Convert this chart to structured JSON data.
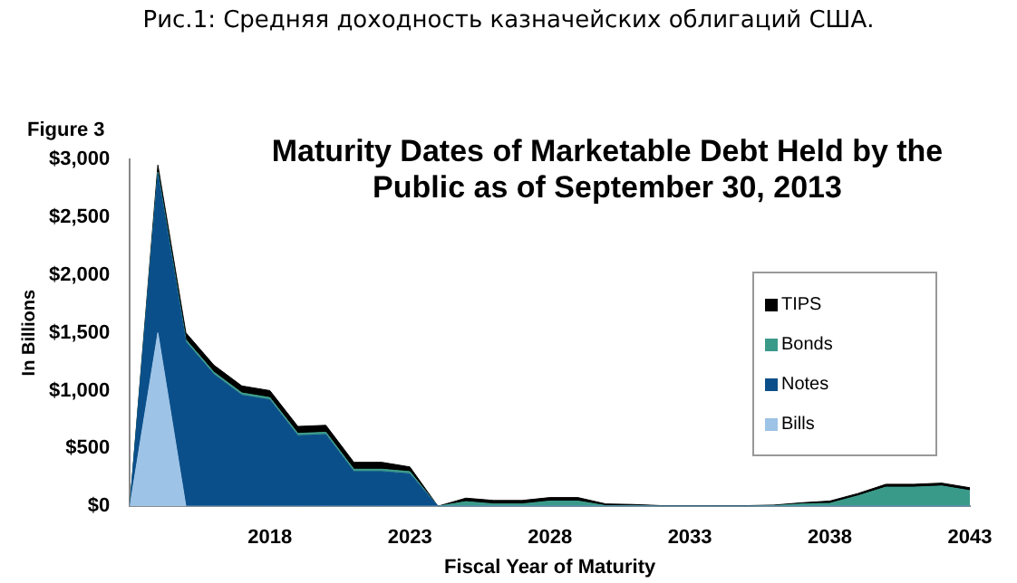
{
  "chart_data": {
    "type": "area",
    "title": "Maturity Dates of Marketable Debt Held by the Public as of September 30, 2013",
    "annotations": [
      "Рис.1: Средняя доходность казначейских облигаций США.",
      "Figure 3"
    ],
    "xlabel": "Fiscal Year of Maturity",
    "ylabel": "In Billions",
    "x": [
      2013,
      2014,
      2015,
      2016,
      2017,
      2018,
      2019,
      2020,
      2021,
      2022,
      2023,
      2024,
      2025,
      2026,
      2027,
      2028,
      2029,
      2030,
      2031,
      2032,
      2033,
      2034,
      2035,
      2036,
      2037,
      2038,
      2039,
      2040,
      2041,
      2042,
      2043
    ],
    "stacked": true,
    "series": [
      {
        "name": "Bills",
        "color": "#9dc3e6",
        "values": [
          0,
          1500,
          0,
          0,
          0,
          0,
          0,
          0,
          0,
          0,
          0,
          0,
          0,
          0,
          0,
          0,
          0,
          0,
          0,
          0,
          0,
          0,
          0,
          0,
          0,
          0,
          0,
          0,
          0,
          0,
          0
        ]
      },
      {
        "name": "Notes",
        "color": "#0b4f8a",
        "values": [
          0,
          1370,
          1420,
          1140,
          960,
          920,
          610,
          620,
          300,
          300,
          280,
          0,
          0,
          0,
          0,
          0,
          0,
          0,
          0,
          0,
          0,
          0,
          0,
          0,
          0,
          0,
          0,
          0,
          0,
          0,
          0
        ]
      },
      {
        "name": "Bonds",
        "color": "#3a9a8a",
        "values": [
          0,
          20,
          20,
          20,
          20,
          20,
          20,
          20,
          20,
          20,
          20,
          0,
          40,
          20,
          20,
          45,
          45,
          5,
          5,
          0,
          0,
          0,
          0,
          5,
          20,
          25,
          90,
          165,
          165,
          175,
          135
        ]
      },
      {
        "name": "TIPS",
        "color": "#000000",
        "values": [
          0,
          60,
          60,
          60,
          60,
          60,
          60,
          60,
          60,
          60,
          40,
          0,
          30,
          30,
          30,
          30,
          30,
          15,
          10,
          5,
          5,
          5,
          5,
          5,
          10,
          20,
          20,
          25,
          25,
          25,
          25
        ]
      }
    ],
    "xlim": [
      2013,
      2043
    ],
    "xticks": [
      2018,
      2023,
      2028,
      2033,
      2038,
      2043
    ],
    "ylim": [
      0,
      3000
    ],
    "yticks": [
      {
        "value": 0,
        "label": "$0"
      },
      {
        "value": 500,
        "label": "$500"
      },
      {
        "value": 1000,
        "label": "$1,000"
      },
      {
        "value": 1500,
        "label": "$1,500"
      },
      {
        "value": 2000,
        "label": "$2,000"
      },
      {
        "value": 2500,
        "label": "$2,500"
      },
      {
        "value": 3000,
        "label": "$3,000"
      }
    ],
    "grid": false,
    "legend": "right"
  }
}
